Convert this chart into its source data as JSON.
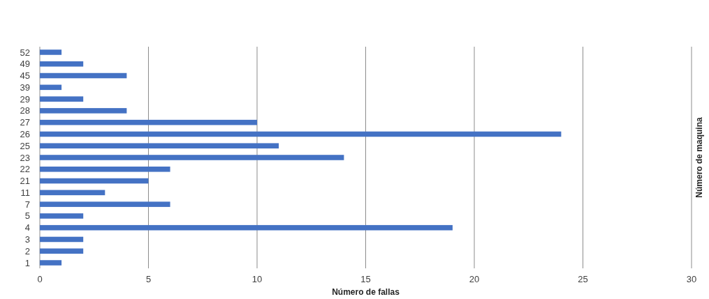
{
  "chart_data": {
    "type": "bar",
    "orientation": "horizontal",
    "xlabel": "Número de fallas",
    "ylabel": "Número de maquina",
    "categories": [
      "52",
      "49",
      "45",
      "39",
      "29",
      "28",
      "27",
      "26",
      "25",
      "23",
      "22",
      "21",
      "11",
      "7",
      "5",
      "4",
      "3",
      "2",
      "1"
    ],
    "values": [
      1,
      2,
      4,
      1,
      2,
      4,
      10,
      24,
      11,
      14,
      6,
      5,
      3,
      6,
      2,
      19,
      2,
      2,
      1
    ],
    "color": "#4472c4",
    "xlim": [
      0,
      30
    ],
    "xticks": [
      0,
      5,
      10,
      15,
      20,
      25,
      30
    ],
    "grid": "x"
  }
}
